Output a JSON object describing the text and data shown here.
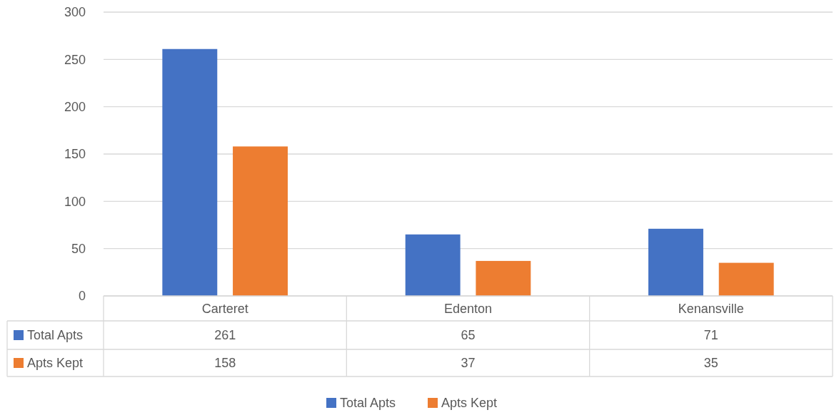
{
  "chart_data": {
    "type": "bar",
    "categories": [
      "Carteret",
      "Edenton",
      "Kenansville"
    ],
    "series": [
      {
        "name": "Total Apts",
        "color": "#4472c4",
        "values": [
          261,
          65,
          71
        ]
      },
      {
        "name": "Apts Kept",
        "color": "#ed7d31",
        "values": [
          158,
          37,
          35
        ]
      }
    ],
    "ylim": [
      0,
      300
    ],
    "yticks": [
      0,
      50,
      100,
      150,
      200,
      250,
      300
    ],
    "grid": "y",
    "legend": "bottom",
    "data_labels": true
  }
}
